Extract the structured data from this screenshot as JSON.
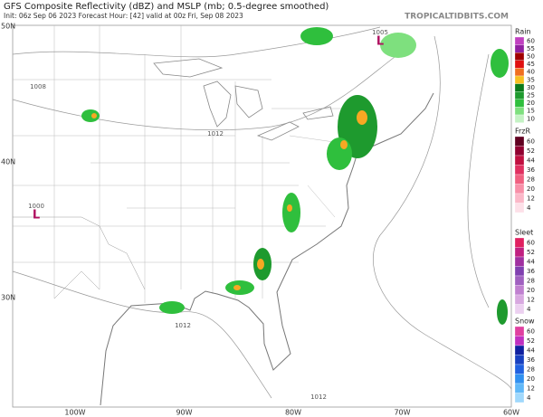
{
  "header": {
    "title": "GFS Composite Reflectivity (dBZ) and MSLP (mb; 0.5-degree smoothed)",
    "subtitle": "Init: 06z Sep 06 2023   Forecast Hour: [42]   valid at 00z Fri, Sep 08 2023",
    "site": "TROPICALTIDBITS.COM"
  },
  "map": {
    "lat_labels": [
      "50N",
      "40N",
      "30N"
    ],
    "lon_labels": [
      "100W",
      "90W",
      "80W",
      "70W",
      "60W"
    ],
    "pressure_labels": [
      "1008",
      "1012",
      "1000",
      "1005",
      "1012",
      "1012"
    ],
    "lows": [
      "L",
      "L"
    ]
  },
  "legends": [
    {
      "name": "Rain",
      "levels": [
        60,
        55,
        50,
        45,
        40,
        35,
        30,
        25,
        20,
        15,
        10
      ],
      "colors": [
        "#c040c0",
        "#9020a0",
        "#a00000",
        "#e01010",
        "#f07020",
        "#f7c020",
        "#0a7a1a",
        "#1e9a2e",
        "#2fbf3d",
        "#7ee07e",
        "#c4f2c4"
      ]
    },
    {
      "name": "FrzR",
      "levels": [
        60,
        52,
        44,
        36,
        28,
        20,
        12,
        4
      ],
      "colors": [
        "#600020",
        "#900030",
        "#c01040",
        "#e03060",
        "#f06080",
        "#f890a8",
        "#fbb8c8",
        "#fde0e8"
      ]
    },
    {
      "name": "Sleet",
      "levels": [
        60,
        52,
        44,
        36,
        28,
        20,
        12,
        4
      ],
      "colors": [
        "#e02060",
        "#c02080",
        "#a030a0",
        "#8040b0",
        "#a060c0",
        "#c080d0",
        "#d8a8e0",
        "#ecd0f0"
      ]
    },
    {
      "name": "Snow",
      "levels": [
        60,
        52,
        44,
        36,
        28,
        20,
        12,
        4
      ],
      "colors": [
        "#e040a0",
        "#c030c0",
        "#1020a0",
        "#1840c0",
        "#2060e0",
        "#3090f0",
        "#60b8f8",
        "#a0d8fc"
      ]
    }
  ]
}
